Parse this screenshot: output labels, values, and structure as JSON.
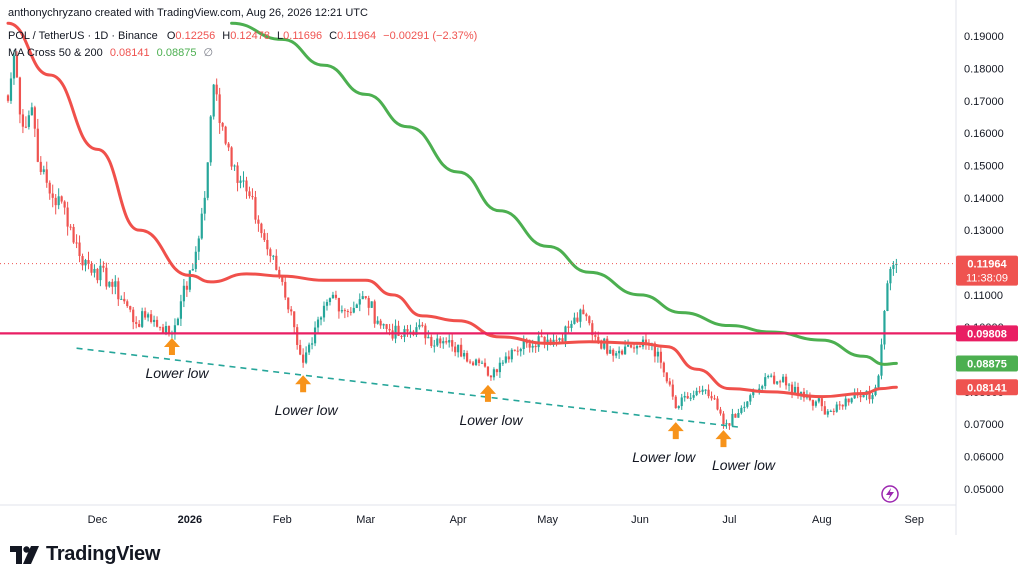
{
  "header": {
    "attribution": "anthonychryzano created with TradingView.com, Aug 26, 2026 12:21 UTC",
    "symbol": "POL / TetherUS · 1D · Binance",
    "ohlc": {
      "o_label": "O",
      "o": "0.12256",
      "h_label": "H",
      "h": "0.12478",
      "l_label": "L",
      "l": "0.11696",
      "c_label": "C",
      "c": "0.11964",
      "change": "−0.00291 (−2.37%)"
    },
    "indicator": {
      "name": "MA Cross 50 & 200",
      "v1": "0.08141",
      "v2": "0.08875",
      "suffix": "∅"
    }
  },
  "branding": {
    "name": "TradingView"
  },
  "colors": {
    "up": "#26a69a",
    "down": "#ef5350",
    "ma50": "#f0504b",
    "ma200": "#4caf50",
    "support": "#e91e63",
    "trendline": "#26a69a",
    "marker": "#f7931a",
    "last_price": "#ef5350"
  },
  "chart_data": {
    "type": "candlestick",
    "y_axis": {
      "min": 0.045,
      "max": 0.195,
      "ticks": [
        "0.19000",
        "0.18000",
        "0.17000",
        "0.16000",
        "0.15000",
        "0.14000",
        "0.13000",
        "0.12000",
        "0.11000",
        "0.10000",
        "0.09000",
        "0.08000",
        "0.07000",
        "0.06000",
        "0.05000"
      ],
      "position": "right",
      "scale": "linear"
    },
    "x_axis": {
      "labels": [
        {
          "label": "Dec",
          "date": "2025-12-01"
        },
        {
          "label": "2026",
          "date": "2026-01-01"
        },
        {
          "label": "Feb",
          "date": "2026-02-01"
        },
        {
          "label": "Mar",
          "date": "2026-03-01"
        },
        {
          "label": "Apr",
          "date": "2026-04-01"
        },
        {
          "label": "May",
          "date": "2026-05-01"
        },
        {
          "label": "Jun",
          "date": "2026-06-01"
        },
        {
          "label": "Jul",
          "date": "2026-07-01"
        },
        {
          "label": "Aug",
          "date": "2026-08-01"
        },
        {
          "label": "Sep",
          "date": "2026-09-01"
        }
      ],
      "range": [
        "2025-11-01",
        "2026-09-15"
      ]
    },
    "price_path": [
      [
        "2025-11-01",
        0.17
      ],
      [
        "2025-11-03",
        0.184
      ],
      [
        "2025-11-06",
        0.162
      ],
      [
        "2025-11-09",
        0.168
      ],
      [
        "2025-11-12",
        0.148
      ],
      [
        "2025-11-16",
        0.14
      ],
      [
        "2025-11-20",
        0.137
      ],
      [
        "2025-11-25",
        0.122
      ],
      [
        "2025-11-30",
        0.118
      ],
      [
        "2025-12-05",
        0.114
      ],
      [
        "2025-12-10",
        0.108
      ],
      [
        "2025-12-14",
        0.101
      ],
      [
        "2025-12-18",
        0.104
      ],
      [
        "2025-12-22",
        0.1
      ],
      [
        "2025-12-26",
        0.098
      ],
      [
        "2025-12-29",
        0.108
      ],
      [
        "2026-01-02",
        0.118
      ],
      [
        "2026-01-06",
        0.14
      ],
      [
        "2026-01-09",
        0.175
      ],
      [
        "2026-01-12",
        0.162
      ],
      [
        "2026-01-16",
        0.15
      ],
      [
        "2026-01-20",
        0.142
      ],
      [
        "2026-01-24",
        0.132
      ],
      [
        "2026-01-28",
        0.122
      ],
      [
        "2026-02-01",
        0.114
      ],
      [
        "2026-02-05",
        0.1
      ],
      [
        "2026-02-08",
        0.089
      ],
      [
        "2026-02-11",
        0.095
      ],
      [
        "2026-02-14",
        0.103
      ],
      [
        "2026-02-18",
        0.11
      ],
      [
        "2026-02-22",
        0.105
      ],
      [
        "2026-02-26",
        0.107
      ],
      [
        "2026-03-01",
        0.109
      ],
      [
        "2026-03-05",
        0.102
      ],
      [
        "2026-03-09",
        0.099
      ],
      [
        "2026-03-13",
        0.097
      ],
      [
        "2026-03-18",
        0.1
      ],
      [
        "2026-03-22",
        0.097
      ],
      [
        "2026-03-26",
        0.095
      ],
      [
        "2026-03-30",
        0.094
      ],
      [
        "2026-04-03",
        0.092
      ],
      [
        "2026-04-07",
        0.09
      ],
      [
        "2026-04-11",
        0.085
      ],
      [
        "2026-04-15",
        0.089
      ],
      [
        "2026-04-19",
        0.093
      ],
      [
        "2026-04-24",
        0.095
      ],
      [
        "2026-04-29",
        0.097
      ],
      [
        "2026-05-04",
        0.096
      ],
      [
        "2026-05-09",
        0.101
      ],
      [
        "2026-05-13",
        0.104
      ],
      [
        "2026-05-17",
        0.097
      ],
      [
        "2026-05-22",
        0.093
      ],
      [
        "2026-05-27",
        0.094
      ],
      [
        "2026-06-01",
        0.094
      ],
      [
        "2026-06-05",
        0.095
      ],
      [
        "2026-06-09",
        0.086
      ],
      [
        "2026-06-13",
        0.075
      ],
      [
        "2026-06-17",
        0.078
      ],
      [
        "2026-06-21",
        0.08
      ],
      [
        "2026-06-25",
        0.078
      ],
      [
        "2026-06-29",
        0.07
      ],
      [
        "2026-07-03",
        0.072
      ],
      [
        "2026-07-07",
        0.077
      ],
      [
        "2026-07-11",
        0.081
      ],
      [
        "2026-07-15",
        0.085
      ],
      [
        "2026-07-20",
        0.082
      ],
      [
        "2026-07-25",
        0.08
      ],
      [
        "2026-07-30",
        0.077
      ],
      [
        "2026-08-03",
        0.074
      ],
      [
        "2026-08-07",
        0.076
      ],
      [
        "2026-08-11",
        0.078
      ],
      [
        "2026-08-15",
        0.079
      ],
      [
        "2026-08-18",
        0.079
      ],
      [
        "2026-08-20",
        0.085
      ],
      [
        "2026-08-22",
        0.105
      ],
      [
        "2026-08-24",
        0.118
      ],
      [
        "2026-08-26",
        0.1196
      ]
    ],
    "series": [
      {
        "name": "MA 50",
        "color": "#f0504b",
        "values": [
          [
            "2025-11-01",
            0.194
          ],
          [
            "2025-11-15",
            0.178
          ],
          [
            "2025-12-01",
            0.155
          ],
          [
            "2025-12-15",
            0.13
          ],
          [
            "2026-01-01",
            0.116
          ],
          [
            "2026-01-08",
            0.114
          ],
          [
            "2026-01-20",
            0.1165
          ],
          [
            "2026-02-01",
            0.1158
          ],
          [
            "2026-02-15",
            0.1145
          ],
          [
            "2026-03-01",
            0.1145
          ],
          [
            "2026-03-10",
            0.11
          ],
          [
            "2026-03-20",
            0.1035
          ],
          [
            "2026-04-01",
            0.102
          ],
          [
            "2026-04-15",
            0.097
          ],
          [
            "2026-05-01",
            0.095
          ],
          [
            "2026-05-15",
            0.0955
          ],
          [
            "2026-06-01",
            0.095
          ],
          [
            "2026-06-10",
            0.094
          ],
          [
            "2026-06-20",
            0.087
          ],
          [
            "2026-07-01",
            0.081
          ],
          [
            "2026-07-15",
            0.08
          ],
          [
            "2026-08-01",
            0.0785
          ],
          [
            "2026-08-15",
            0.0795
          ],
          [
            "2026-08-21",
            0.081
          ],
          [
            "2026-08-26",
            0.0814
          ]
        ]
      },
      {
        "name": "MA 200",
        "color": "#4caf50",
        "values": [
          [
            "2026-01-15",
            0.194
          ],
          [
            "2026-02-01",
            0.189
          ],
          [
            "2026-02-15",
            0.181
          ],
          [
            "2026-03-01",
            0.172
          ],
          [
            "2026-03-15",
            0.162
          ],
          [
            "2026-04-01",
            0.148
          ],
          [
            "2026-04-15",
            0.136
          ],
          [
            "2026-05-01",
            0.125
          ],
          [
            "2026-05-15",
            0.117
          ],
          [
            "2026-06-01",
            0.11
          ],
          [
            "2026-06-15",
            0.1045
          ],
          [
            "2026-07-01",
            0.1005
          ],
          [
            "2026-07-15",
            0.0985
          ],
          [
            "2026-08-01",
            0.096
          ],
          [
            "2026-08-15",
            0.091
          ],
          [
            "2026-08-22",
            0.0885
          ],
          [
            "2026-08-26",
            0.0888
          ]
        ]
      }
    ],
    "support_level": 0.09808,
    "trendline": [
      [
        "2025-11-24",
        0.0935
      ],
      [
        "2026-07-05",
        0.069
      ]
    ],
    "annotations": [
      {
        "text": "Lower low",
        "date": "2025-12-26",
        "price": 0.0985
      },
      {
        "text": "Lower low",
        "date": "2026-02-08",
        "price": 0.087
      },
      {
        "text": "Lower low",
        "date": "2026-04-11",
        "price": 0.084
      },
      {
        "text": "Lower low",
        "date": "2026-06-13",
        "price": 0.0725
      },
      {
        "text": "Lower low",
        "date": "2026-06-29",
        "price": 0.07
      }
    ],
    "price_labels": [
      {
        "value": "0.11964",
        "sub": "11:38:09",
        "price": 0.11964,
        "color": "#ef5350"
      },
      {
        "value": "0.09808",
        "price": 0.09808,
        "color": "#e91e63"
      },
      {
        "value": "0.08875",
        "price": 0.08875,
        "color": "#4caf50"
      },
      {
        "value": "0.08141",
        "price": 0.08141,
        "color": "#ef5350"
      }
    ]
  }
}
